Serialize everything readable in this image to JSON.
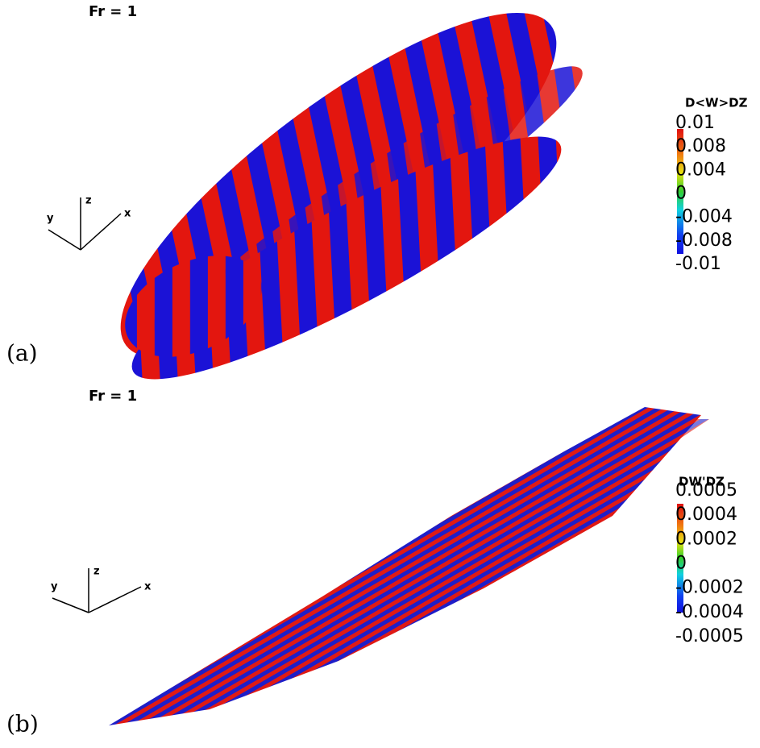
{
  "panels": [
    {
      "label": "(a)",
      "title": "Fr = 1",
      "axes": {
        "x": "x",
        "y": "y",
        "z": "z"
      },
      "colorbar": {
        "title": "D<W>DZ",
        "ticks": [
          "0.01",
          "0.008",
          "0.004",
          "0",
          "-0.004",
          "-0.008",
          "-0.01"
        ]
      }
    },
    {
      "label": "(b)",
      "title": "Fr = 1",
      "axes": {
        "x": "x",
        "y": "y",
        "z": "z"
      },
      "colorbar": {
        "title": "DW'DZ",
        "ticks": [
          "0.0005",
          "0.0004",
          "0.0002",
          "0",
          "-0.0002",
          "-0.0004",
          "-0.0005"
        ]
      }
    }
  ]
}
